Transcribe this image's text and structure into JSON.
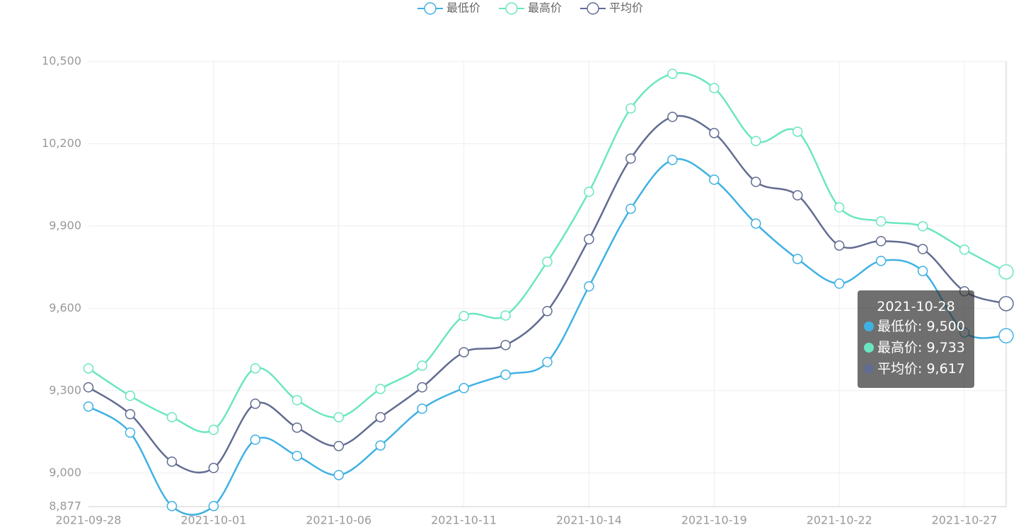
{
  "chart_data": {
    "type": "line",
    "categories": [
      "2021-09-28",
      null,
      null,
      "2021-10-01",
      null,
      null,
      "2021-10-06",
      null,
      null,
      "2021-10-11",
      null,
      null,
      "2021-10-14",
      null,
      null,
      "2021-10-19",
      null,
      null,
      "2021-10-22",
      null,
      null,
      "2021-10-27",
      "2021-10-28"
    ],
    "series": [
      {
        "name": "最低价",
        "color": "#3fb1e3",
        "values": [
          9242,
          9147,
          8879,
          8879,
          9121,
          9062,
          8992,
          9100,
          9234,
          9309,
          9358,
          9404,
          9680,
          9963,
          10141,
          10069,
          9909,
          9780,
          9690,
          9773,
          9736,
          9512,
          9500
        ]
      },
      {
        "name": "最高价",
        "color": "#6be6c1",
        "values": [
          9381,
          9281,
          9203,
          9157,
          9381,
          9265,
          9203,
          9306,
          9391,
          9572,
          9574,
          9770,
          10025,
          10329,
          10455,
          10403,
          10210,
          10244,
          9968,
          9917,
          9899,
          9814,
          9733
        ]
      },
      {
        "name": "平均价",
        "color": "#626c91",
        "values": [
          9312,
          9214,
          9041,
          9018,
          9252,
          9165,
          9098,
          9203,
          9312,
          9440,
          9466,
          9590,
          9852,
          10146,
          10298,
          10239,
          10061,
          10012,
          9829,
          9845,
          9816,
          9662,
          9617
        ]
      }
    ],
    "ylim": [
      8877,
      10500
    ],
    "yticks": [
      {
        "value": 8877,
        "label": "8,877"
      },
      {
        "value": 9000,
        "label": "9,000"
      },
      {
        "value": 9300,
        "label": "9,300"
      },
      {
        "value": 9600,
        "label": "9,600"
      },
      {
        "value": 9900,
        "label": "9,900"
      },
      {
        "value": 10200,
        "label": "10,200"
      },
      {
        "value": 10500,
        "label": "10,500"
      }
    ],
    "grid": true,
    "smooth": true,
    "legend": "top",
    "tooltip": {
      "value_labels": [
        "9,500",
        "9,733",
        "9,617"
      ]
    }
  }
}
